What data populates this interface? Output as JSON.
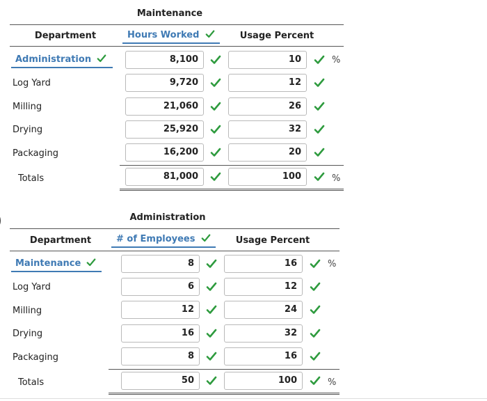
{
  "maintenance": {
    "title": "Maintenance",
    "headers": {
      "department": "Department",
      "value": "Hours Worked",
      "percent": "Usage Percent"
    },
    "selected_row_label": "Administration",
    "rows": [
      {
        "label": "Administration",
        "value": "8,100",
        "percent": "10",
        "pct_sign": "%"
      },
      {
        "label": "Log Yard",
        "value": "9,720",
        "percent": "12",
        "pct_sign": ""
      },
      {
        "label": "Milling",
        "value": "21,060",
        "percent": "26",
        "pct_sign": ""
      },
      {
        "label": "Drying",
        "value": "25,920",
        "percent": "32",
        "pct_sign": ""
      },
      {
        "label": "Packaging",
        "value": "16,200",
        "percent": "20",
        "pct_sign": ""
      }
    ],
    "totals": {
      "label": "Totals",
      "value": "81,000",
      "percent": "100",
      "pct_sign": "%"
    }
  },
  "administration": {
    "title": "Administration",
    "headers": {
      "department": "Department",
      "value": "# of Employees",
      "percent": "Usage Percent"
    },
    "rows": [
      {
        "label": "Maintenance",
        "value": "8",
        "percent": "16",
        "pct_sign": "%"
      },
      {
        "label": "Log Yard",
        "value": "6",
        "percent": "12",
        "pct_sign": ""
      },
      {
        "label": "Milling",
        "value": "12",
        "percent": "24",
        "pct_sign": ""
      },
      {
        "label": "Drying",
        "value": "16",
        "percent": "32",
        "pct_sign": ""
      },
      {
        "label": "Packaging",
        "value": "8",
        "percent": "16",
        "pct_sign": ""
      }
    ],
    "totals": {
      "label": "Totals",
      "value": "50",
      "percent": "100",
      "pct_sign": "%"
    }
  },
  "colors": {
    "accent": "#3f7ab4",
    "check": "#2e9b3e"
  },
  "icons": {
    "check": "checkmark-icon"
  },
  "stray_paren": ")"
}
